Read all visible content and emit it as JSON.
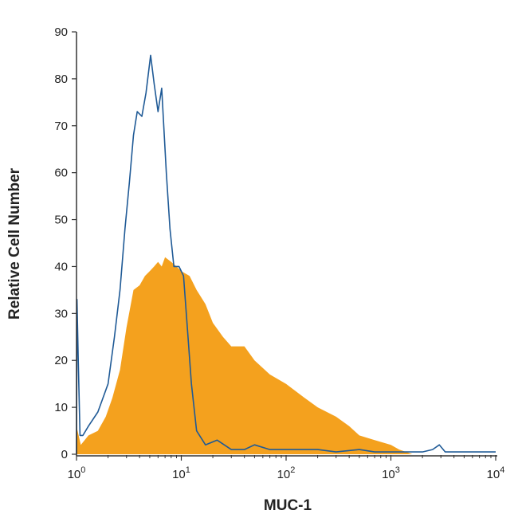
{
  "chart_data": {
    "type": "area",
    "title": "",
    "xlabel": "MUC-1",
    "ylabel": "Relative Cell Number",
    "x_scale": "log",
    "xlim": [
      1,
      10000
    ],
    "ylim": [
      0,
      90
    ],
    "x_ticks": [
      {
        "value": 1,
        "base": "10",
        "exp": "0"
      },
      {
        "value": 10,
        "base": "10",
        "exp": "1"
      },
      {
        "value": 100,
        "base": "10",
        "exp": "2"
      },
      {
        "value": 1000,
        "base": "10",
        "exp": "3"
      },
      {
        "value": 10000,
        "base": "10",
        "exp": "4"
      }
    ],
    "y_ticks": [
      0,
      10,
      20,
      30,
      40,
      50,
      60,
      70,
      80,
      90
    ],
    "grid": false,
    "series": [
      {
        "render": "filled",
        "color": "#F4A11E",
        "points": [
          [
            1.0,
            6
          ],
          [
            1.1,
            2
          ],
          [
            1.3,
            4
          ],
          [
            1.6,
            5
          ],
          [
            1.9,
            8
          ],
          [
            2.2,
            12
          ],
          [
            2.6,
            18
          ],
          [
            3.0,
            27
          ],
          [
            3.5,
            35
          ],
          [
            4.0,
            36
          ],
          [
            4.5,
            38
          ],
          [
            5.0,
            39
          ],
          [
            5.5,
            40
          ],
          [
            6.0,
            41
          ],
          [
            6.5,
            40
          ],
          [
            7.0,
            42
          ],
          [
            8.0,
            41
          ],
          [
            9.0,
            40
          ],
          [
            10.0,
            39
          ],
          [
            12.0,
            38
          ],
          [
            14.0,
            35
          ],
          [
            17.0,
            32
          ],
          [
            20.0,
            28
          ],
          [
            25.0,
            25
          ],
          [
            30.0,
            23
          ],
          [
            40.0,
            23
          ],
          [
            50.0,
            20
          ],
          [
            70.0,
            17
          ],
          [
            100.0,
            15
          ],
          [
            150.0,
            12
          ],
          [
            200.0,
            10
          ],
          [
            300.0,
            8
          ],
          [
            400.0,
            6
          ],
          [
            500.0,
            4
          ],
          [
            700.0,
            3
          ],
          [
            1000.0,
            2
          ],
          [
            1200.0,
            1
          ],
          [
            1400.0,
            0.5
          ],
          [
            1600.0,
            0
          ]
        ]
      },
      {
        "render": "outline",
        "color": "#1F5A96",
        "points": [
          [
            1.0,
            0
          ],
          [
            1.01,
            33
          ],
          [
            1.04,
            20
          ],
          [
            1.08,
            4
          ],
          [
            1.15,
            4
          ],
          [
            1.3,
            6
          ],
          [
            1.6,
            9
          ],
          [
            2.0,
            15
          ],
          [
            2.3,
            25
          ],
          [
            2.6,
            35
          ],
          [
            2.9,
            48
          ],
          [
            3.2,
            58
          ],
          [
            3.5,
            68
          ],
          [
            3.8,
            73
          ],
          [
            4.2,
            72
          ],
          [
            4.6,
            77
          ],
          [
            5.1,
            85
          ],
          [
            5.5,
            79
          ],
          [
            6.0,
            73
          ],
          [
            6.5,
            78
          ],
          [
            7.2,
            60
          ],
          [
            7.8,
            48
          ],
          [
            8.5,
            40
          ],
          [
            9.5,
            40
          ],
          [
            10.5,
            38
          ],
          [
            11.5,
            26
          ],
          [
            12.5,
            15
          ],
          [
            14.0,
            5
          ],
          [
            17.0,
            2
          ],
          [
            22.0,
            3
          ],
          [
            30.0,
            1
          ],
          [
            40.0,
            1
          ],
          [
            50.0,
            2
          ],
          [
            70.0,
            1
          ],
          [
            100.0,
            1
          ],
          [
            200.0,
            1
          ],
          [
            300.0,
            0.5
          ],
          [
            500.0,
            1
          ],
          [
            700.0,
            0.5
          ],
          [
            1000.0,
            0.5
          ],
          [
            2000.0,
            0.5
          ],
          [
            2500.0,
            1
          ],
          [
            2900.0,
            2
          ],
          [
            3300.0,
            0.5
          ],
          [
            5000.0,
            0.5
          ],
          [
            10000.0,
            0.5
          ]
        ]
      }
    ]
  }
}
